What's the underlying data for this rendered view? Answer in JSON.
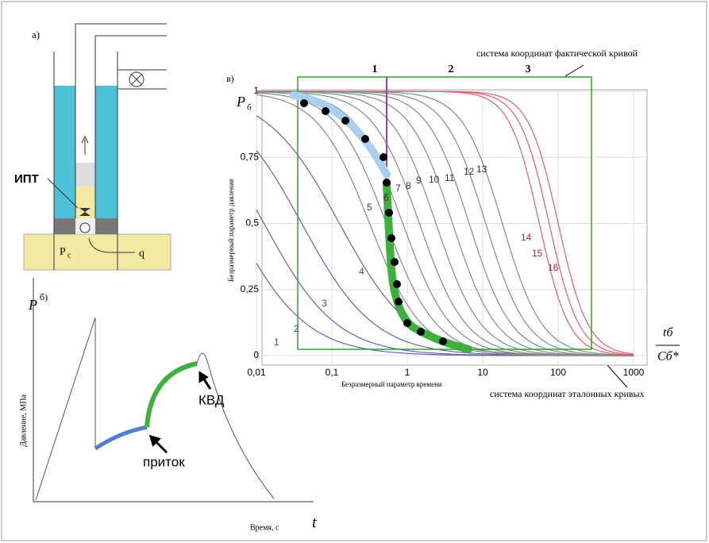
{
  "panel_a": {
    "label": "а)",
    "ipt_label": "ИПТ",
    "pressure_symbol": "P",
    "pressure_subscript": "с",
    "flow_label": "q"
  },
  "panel_b": {
    "label": "б)",
    "y_axis_symbol": "P",
    "y_axis_label": "Давление, МПа",
    "x_axis_label": "Время, с",
    "x_axis_symbol": "t",
    "inflow_label": "приток",
    "kvd_label": "КВД"
  },
  "panel_c": {
    "label": "в)",
    "y_axis_symbol": "P",
    "y_axis_subscript": "б",
    "x_axis_numerator": "tб",
    "x_axis_denominator": "Cб*",
    "y_axis_label": "Безразмерный параметр давления",
    "x_axis_label": "Безразмерный параметр времени",
    "actual_coords_label": "система координат фактической кривой",
    "reference_coords_label": "система координат эталонных кривых",
    "yticks": [
      "0",
      "0,25",
      "0,5",
      "0,75",
      "1"
    ],
    "xticks": [
      "0,01",
      "0,1",
      "1",
      "10",
      "100",
      "1000"
    ],
    "top_ticks": [
      "1",
      "2",
      "3"
    ],
    "curve_labels": [
      "1",
      "2",
      "3",
      "4",
      "5",
      "6",
      "7",
      "8",
      "9",
      "10",
      "11",
      "12",
      "13",
      "14",
      "15",
      "16"
    ]
  }
}
